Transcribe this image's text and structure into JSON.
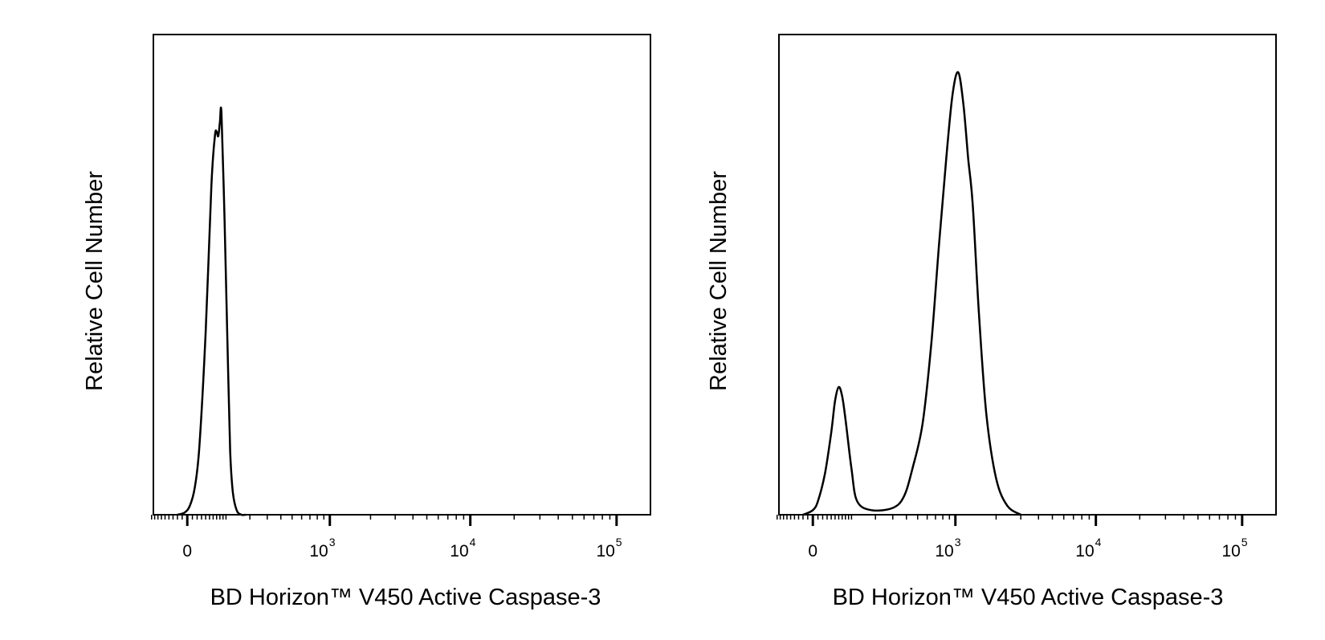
{
  "chart_data": [
    {
      "type": "line",
      "panel": "left",
      "xlabel": "BD Horizon™ V450 Active Caspase-3",
      "ylabel": "Relative Cell Number",
      "x_scale": "biexponential (log above ~10^2)",
      "xlim": [
        -60,
        150000
      ],
      "ylim": [
        0,
        1
      ],
      "grid": false,
      "legend": "none",
      "x_ticks": [
        {
          "value": 0,
          "label": "0",
          "exp": ""
        },
        {
          "value": 1000,
          "label": "10",
          "exp": "3"
        },
        {
          "value": 10000,
          "label": "10",
          "exp": "4"
        },
        {
          "value": 100000,
          "label": "10",
          "exp": "5"
        }
      ],
      "series": [
        {
          "x": [
            -20,
            -5,
            5,
            15,
            25,
            40,
            55,
            65,
            70,
            75,
            80,
            85,
            95,
            105,
            115,
            125,
            140,
            160,
            180
          ],
          "y": [
            0,
            0.005,
            0.02,
            0.06,
            0.15,
            0.4,
            0.72,
            0.83,
            0.84,
            0.83,
            0.86,
            0.88,
            0.65,
            0.38,
            0.14,
            0.05,
            0.01,
            0,
            0
          ]
        }
      ]
    },
    {
      "type": "line",
      "panel": "right",
      "xlabel": "BD Horizon™ V450 Active Caspase-3",
      "ylabel": "Relative Cell Number",
      "x_scale": "biexponential (log above ~10^2)",
      "xlim": [
        -60,
        150000
      ],
      "ylim": [
        0,
        1
      ],
      "grid": false,
      "legend": "none",
      "x_ticks": [
        {
          "value": 0,
          "label": "0",
          "exp": ""
        },
        {
          "value": 1000,
          "label": "10",
          "exp": "3"
        },
        {
          "value": 10000,
          "label": "10",
          "exp": "4"
        },
        {
          "value": 100000,
          "label": "10",
          "exp": "5"
        }
      ],
      "series": [
        {
          "x": [
            -20,
            0,
            10,
            25,
            40,
            50,
            60,
            70,
            80,
            100,
            120,
            180,
            300,
            380,
            450,
            550,
            650,
            750,
            850,
            950,
            1050,
            1150,
            1250,
            1350,
            1500,
            1700,
            2000,
            2400,
            3000
          ],
          "y": [
            0,
            0.01,
            0.03,
            0.09,
            0.18,
            0.25,
            0.28,
            0.26,
            0.21,
            0.1,
            0.03,
            0.01,
            0.015,
            0.04,
            0.1,
            0.2,
            0.38,
            0.6,
            0.78,
            0.92,
            0.97,
            0.9,
            0.78,
            0.68,
            0.44,
            0.22,
            0.08,
            0.02,
            0
          ]
        }
      ]
    }
  ]
}
